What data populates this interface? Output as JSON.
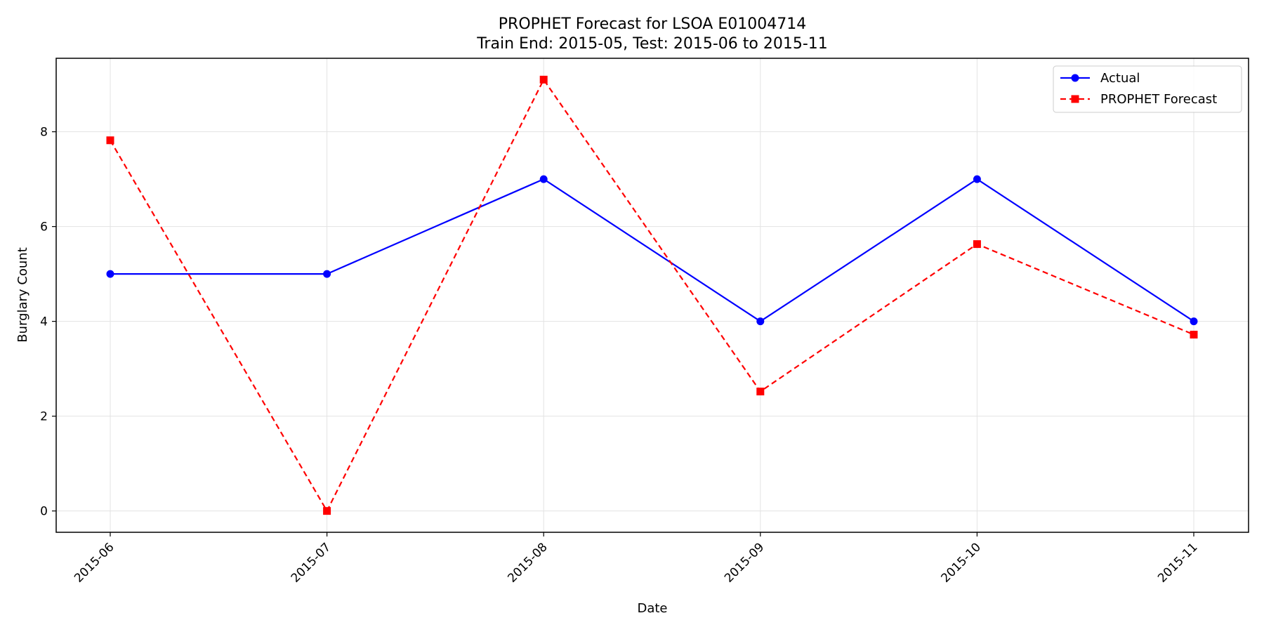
{
  "chart_data": {
    "type": "line",
    "title_line1": "PROPHET Forecast for LSOA E01004714",
    "title_line2": "Train End: 2015-05, Test: 2015-06 to 2015-11",
    "xlabel": "Date",
    "ylabel": "Burglary Count",
    "categories": [
      "2015-06",
      "2015-07",
      "2015-08",
      "2015-09",
      "2015-10",
      "2015-11"
    ],
    "ylim": [
      -0.45,
      9.55
    ],
    "yticks": [
      0,
      2,
      4,
      6,
      8
    ],
    "grid": true,
    "legend_position": "top-right",
    "series": [
      {
        "name": "Actual",
        "values": [
          5,
          5,
          7,
          4,
          7,
          4
        ],
        "color": "#0000ff",
        "marker": "circle",
        "dashed": false
      },
      {
        "name": "PROPHET Forecast",
        "values": [
          7.82,
          0.0,
          9.1,
          2.52,
          5.63,
          3.72
        ],
        "color": "#ff0000",
        "marker": "square",
        "dashed": true
      }
    ]
  }
}
